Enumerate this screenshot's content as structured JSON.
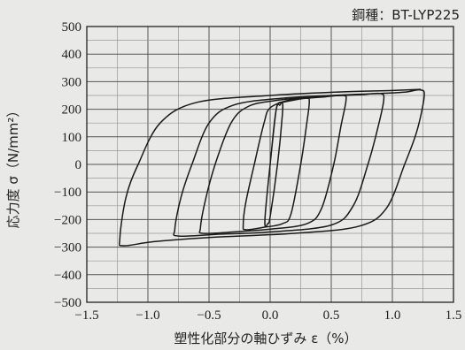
{
  "chart_data": {
    "type": "line",
    "annotation": "鋼種：BT-LYP225",
    "xlabel": "塑性化部分の軸ひずみ ε（%）",
    "ylabel": "応力度 σ（N/mm²）",
    "xlim": [
      -1.5,
      1.5
    ],
    "ylim": [
      -500,
      500
    ],
    "x_ticks": [
      -1.5,
      -1.0,
      -0.5,
      0.0,
      0.5,
      1.0,
      1.5
    ],
    "x_tick_labels": [
      "−1.5",
      "−1.0",
      "−0.5",
      "0.0",
      "0.5",
      "1.0",
      "1.5"
    ],
    "y_ticks": [
      500,
      400,
      300,
      200,
      100,
      0,
      -100,
      -200,
      -300,
      -400,
      -500
    ],
    "y_tick_labels": [
      "500",
      "400",
      "300",
      "200",
      "100",
      "0",
      "−100",
      "−200",
      "−300",
      "−400",
      "−500"
    ],
    "x_minor_step": 0.25,
    "y_minor_step": 50,
    "grid": true,
    "series": [
      {
        "values": [
          [
            0.0,
            0
          ],
          [
            0.05,
            200
          ],
          [
            0.08,
            215
          ],
          [
            0.1,
            225
          ],
          [
            0.1,
            180
          ],
          [
            0.06,
            0
          ],
          [
            0.0,
            -190
          ],
          [
            -0.02,
            -215
          ],
          [
            -0.04,
            -225
          ],
          [
            -0.04,
            -180
          ],
          [
            0.0,
            0
          ],
          [
            0.05,
            200
          ],
          [
            0.1,
            225
          ]
        ]
      },
      {
        "values": [
          [
            0.1,
            225
          ],
          [
            0.18,
            232
          ],
          [
            0.3,
            240
          ],
          [
            0.32,
            225
          ],
          [
            0.3,
            150
          ],
          [
            0.25,
            0
          ],
          [
            0.17,
            -180
          ],
          [
            0.1,
            -215
          ],
          [
            -0.05,
            -228
          ],
          [
            -0.2,
            -237
          ],
          [
            -0.22,
            -220
          ],
          [
            -0.2,
            -140
          ],
          [
            -0.13,
            0
          ],
          [
            -0.05,
            150
          ],
          [
            0.0,
            205
          ],
          [
            0.15,
            233
          ],
          [
            0.3,
            240
          ]
        ]
      },
      {
        "values": [
          [
            0.3,
            240
          ],
          [
            0.45,
            245
          ],
          [
            0.6,
            250
          ],
          [
            0.62,
            230
          ],
          [
            0.58,
            140
          ],
          [
            0.52,
            0
          ],
          [
            0.42,
            -160
          ],
          [
            0.3,
            -215
          ],
          [
            0.0,
            -235
          ],
          [
            -0.3,
            -245
          ],
          [
            -0.55,
            -250
          ],
          [
            -0.57,
            -230
          ],
          [
            -0.53,
            -130
          ],
          [
            -0.45,
            0
          ],
          [
            -0.32,
            150
          ],
          [
            -0.18,
            210
          ],
          [
            0.05,
            232
          ],
          [
            0.35,
            245
          ],
          [
            0.6,
            250
          ]
        ]
      },
      {
        "values": [
          [
            0.6,
            250
          ],
          [
            0.75,
            253
          ],
          [
            0.9,
            257
          ],
          [
            0.93,
            235
          ],
          [
            0.88,
            130
          ],
          [
            0.8,
            0
          ],
          [
            0.68,
            -150
          ],
          [
            0.5,
            -220
          ],
          [
            0.0,
            -245
          ],
          [
            -0.4,
            -253
          ],
          [
            -0.75,
            -260
          ],
          [
            -0.78,
            -235
          ],
          [
            -0.73,
            -120
          ],
          [
            -0.64,
            0
          ],
          [
            -0.5,
            150
          ],
          [
            -0.3,
            215
          ],
          [
            0.1,
            240
          ],
          [
            0.6,
            252
          ],
          [
            0.9,
            257
          ]
        ]
      },
      {
        "values": [
          [
            0.9,
            257
          ],
          [
            1.1,
            262
          ],
          [
            1.23,
            270
          ],
          [
            1.26,
            245
          ],
          [
            1.2,
            120
          ],
          [
            1.1,
            0
          ],
          [
            0.95,
            -160
          ],
          [
            0.72,
            -225
          ],
          [
            0.2,
            -250
          ],
          [
            -0.5,
            -265
          ],
          [
            -0.95,
            -280
          ],
          [
            -1.2,
            -295
          ],
          [
            -1.23,
            -270
          ],
          [
            -1.18,
            -120
          ],
          [
            -1.08,
            0
          ],
          [
            -0.9,
            150
          ],
          [
            -0.6,
            225
          ],
          [
            0.0,
            250
          ],
          [
            0.6,
            263
          ],
          [
            1.0,
            268
          ],
          [
            1.23,
            272
          ]
        ]
      }
    ]
  }
}
